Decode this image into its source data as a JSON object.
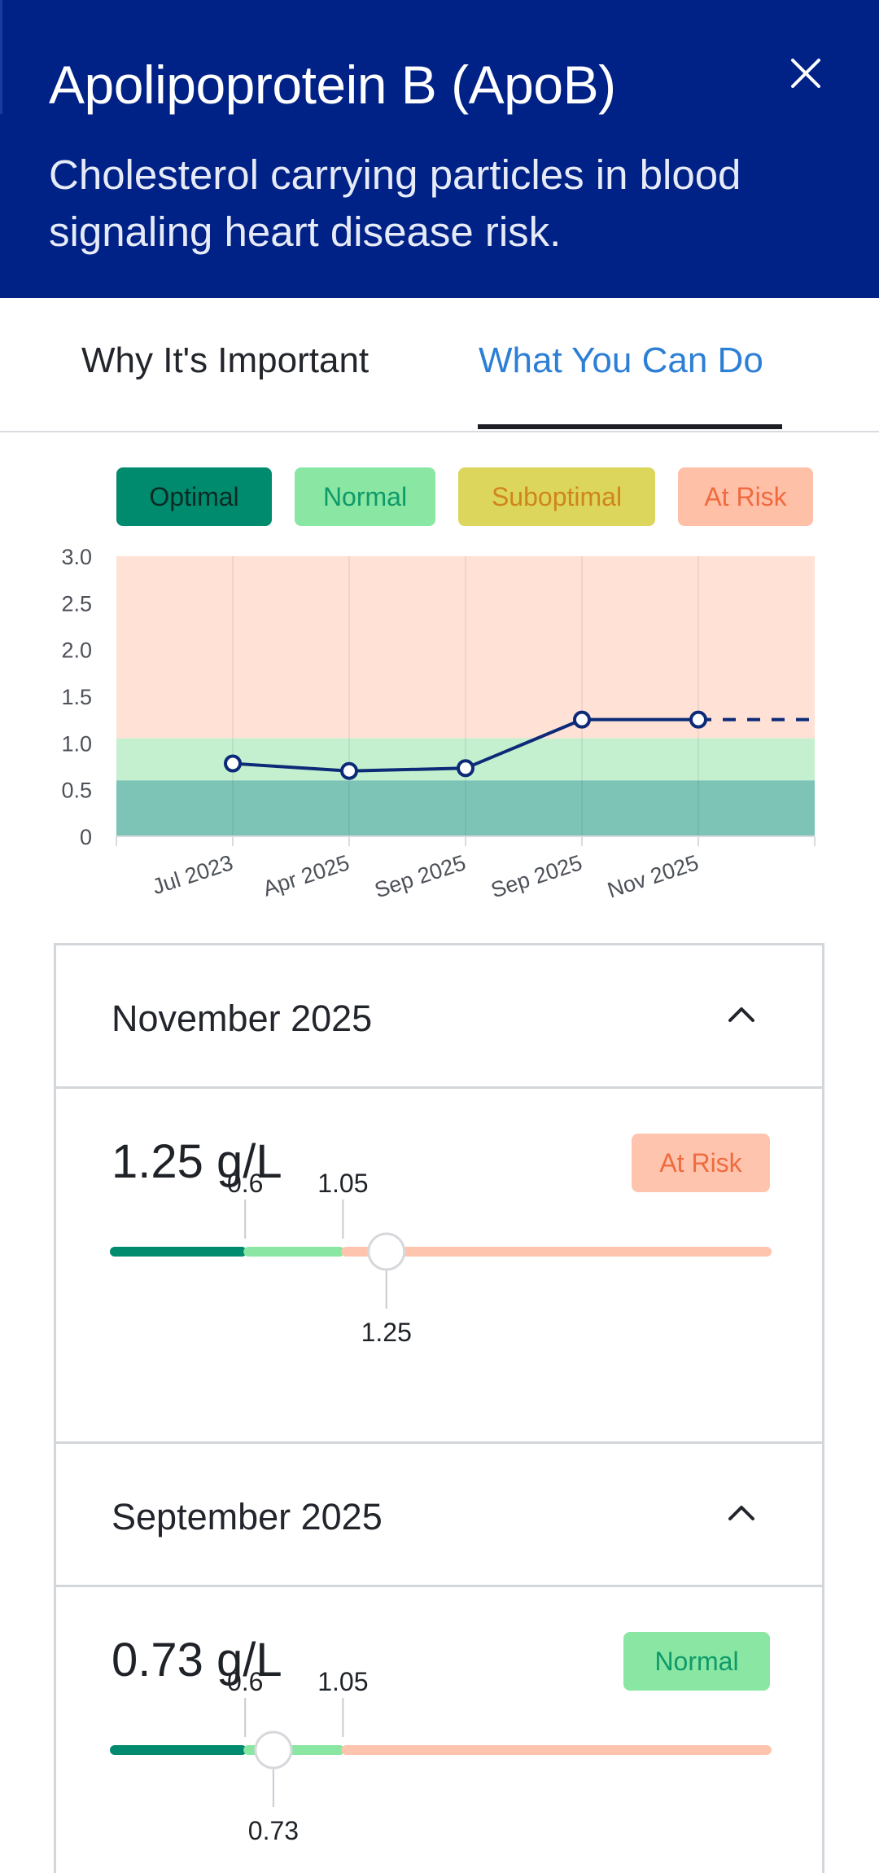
{
  "header": {
    "title": "Apolipoprotein B (ApoB)",
    "subtitle": "Cholesterol carrying particles in blood signaling heart disease risk.",
    "background": "#002185"
  },
  "tabs": [
    {
      "label": "Why It's Important",
      "active": false
    },
    {
      "label": "What You Can Do",
      "active": true
    }
  ],
  "legend": [
    {
      "label": "Optimal",
      "color": "#008a6e"
    },
    {
      "label": "Normal",
      "color": "#89e6a3"
    },
    {
      "label": "Suboptimal",
      "color": "#ddd65d"
    },
    {
      "label": "At Risk",
      "color": "#ffc0a8"
    }
  ],
  "chart_data": {
    "type": "line",
    "x": [
      "Jul 2023",
      "Apr 2025",
      "Sep 2025",
      "Sep 2025",
      "Nov 2025"
    ],
    "series": [
      {
        "values": [
          0.78,
          0.7,
          0.73,
          1.25,
          1.25
        ],
        "color": "#0c2a78"
      }
    ],
    "projection": {
      "from": "Nov 2025",
      "value": 1.25
    },
    "ylim": [
      0,
      3.0
    ],
    "yticks": [
      "3.0",
      "2.5",
      "2.0",
      "1.5",
      "1.0",
      "0.5",
      "0"
    ],
    "bands": [
      {
        "label": "Optimal",
        "from": 0,
        "to": 0.6,
        "color": "#7ec4b6"
      },
      {
        "label": "Normal",
        "from": 0.6,
        "to": 1.05,
        "color": "#c4f0cf"
      },
      {
        "label": "At Risk",
        "from": 1.05,
        "to": 3.0,
        "color": "#ffe1d6"
      }
    ],
    "grid": true
  },
  "readings": [
    {
      "month": "November 2025",
      "value": "1.25 g/L",
      "status": "At Risk",
      "marker": 1.25,
      "thresholds": [
        "0.6",
        "1.05"
      ],
      "marker_label": "1.25"
    },
    {
      "month": "September 2025",
      "value": "0.73 g/L",
      "status": "Normal",
      "marker": 0.73,
      "thresholds": [
        "0.6",
        "1.05"
      ],
      "marker_label": "0.73"
    }
  ]
}
